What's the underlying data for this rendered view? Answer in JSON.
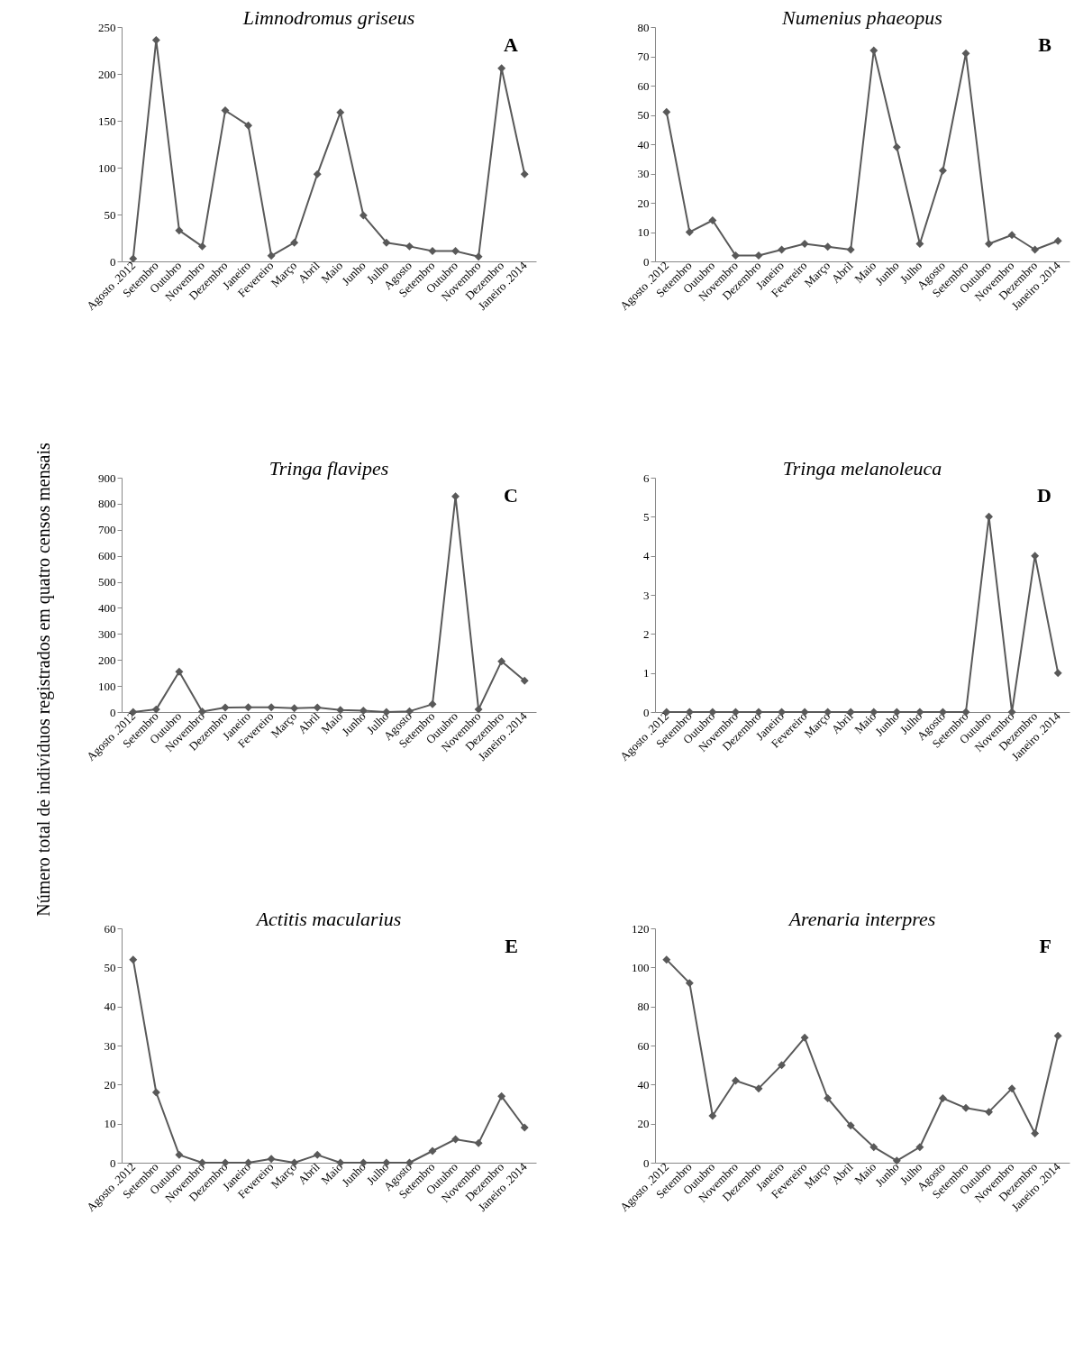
{
  "chart_data": [
    {
      "type": "line",
      "title": "Limnodromus griseus",
      "annotations": [
        "A"
      ],
      "categories": [
        "Agosto .2012",
        "Setembro",
        "Outubro",
        "Novembro",
        "Dezembro",
        "Janeiro",
        "Fevereiro",
        "Março",
        "Abril",
        "Maio",
        "Junho",
        "Julho",
        "Agosto",
        "Setembro",
        "Outubro",
        "Novembro",
        "Dezembro",
        "Janeiro .2014"
      ],
      "series": [
        {
          "color": "#595959",
          "values": [
            3,
            236,
            33,
            16,
            161,
            145,
            6,
            20,
            93,
            159,
            49,
            20,
            16,
            11,
            11,
            5,
            206,
            93
          ]
        }
      ],
      "ylim": [
        0,
        250
      ],
      "yticks": [
        0,
        50,
        100,
        150,
        200,
        250
      ],
      "grid": false,
      "marker": "diamond",
      "line_style": "solid"
    },
    {
      "type": "line",
      "title": "Numenius phaeopus",
      "annotations": [
        "B"
      ],
      "categories": [
        "Agosto .2012",
        "Setembro",
        "Outubro",
        "Novembro",
        "Dezembro",
        "Janeiro",
        "Fevereiro",
        "Março",
        "Abril",
        "Maio",
        "Junho",
        "Julho",
        "Agosto",
        "Setembro",
        "Outubro",
        "Novembro",
        "Dezembro",
        "Janeiro .2014"
      ],
      "series": [
        {
          "color": "#595959",
          "values": [
            51,
            10,
            14,
            2,
            2,
            4,
            6,
            5,
            4,
            72,
            39,
            6,
            31,
            71,
            6,
            9,
            4,
            7
          ]
        }
      ],
      "ylim": [
        0,
        80
      ],
      "yticks": [
        0,
        10,
        20,
        30,
        40,
        50,
        60,
        70,
        80
      ],
      "grid": false,
      "marker": "diamond",
      "line_style": "solid"
    },
    {
      "type": "line",
      "title": "Tringa flavipes",
      "annotations": [
        "C"
      ],
      "ylabel": "Número total de indivíduos registrados em quatro censos mensais",
      "categories": [
        "Agosto .2012",
        "Setembro",
        "Outubro",
        "Novembro",
        "Dezembro",
        "Janeiro",
        "Fevereiro",
        "Março",
        "Abril",
        "Maio",
        "Junho",
        "Julho",
        "Agosto",
        "Setembro",
        "Outubro",
        "Novembro",
        "Dezembro",
        "Janeiro .2014"
      ],
      "series": [
        {
          "color": "#595959",
          "values": [
            0,
            10,
            155,
            2,
            17,
            18,
            18,
            15,
            17,
            8,
            5,
            0,
            3,
            30,
            828,
            10,
            195,
            120
          ]
        }
      ],
      "ylim": [
        0,
        900
      ],
      "yticks": [
        0,
        100,
        200,
        300,
        400,
        500,
        600,
        700,
        800,
        900
      ],
      "grid": false,
      "marker": "diamond",
      "line_style": "solid"
    },
    {
      "type": "line",
      "title": "Tringa melanoleuca",
      "annotations": [
        "D"
      ],
      "categories": [
        "Agosto .2012",
        "Setembro",
        "Outubro",
        "Novembro",
        "Dezembro",
        "Janeiro",
        "Fevereiro",
        "Março",
        "Abril",
        "Maio",
        "Junho",
        "Julho",
        "Agosto",
        "Setembro",
        "Outubro",
        "Novembro",
        "Dezembro",
        "Janeiro .2014"
      ],
      "series": [
        {
          "color": "#595959",
          "values": [
            0,
            0,
            0,
            0,
            0,
            0,
            0,
            0,
            0,
            0,
            0,
            0,
            0,
            0,
            5,
            0,
            4,
            1
          ]
        }
      ],
      "ylim": [
        0,
        6
      ],
      "yticks": [
        0,
        1,
        2,
        3,
        4,
        5,
        6
      ],
      "grid": false,
      "marker": "diamond",
      "line_style": "solid"
    },
    {
      "type": "line",
      "title": "Actitis macularius",
      "annotations": [
        "E"
      ],
      "categories": [
        "Agosto .2012",
        "Setembro",
        "Outubro",
        "Novembro",
        "Dezembro",
        "Janeiro",
        "Fevereiro",
        "Março",
        "Abril",
        "Maio",
        "Junho",
        "Julho",
        "Agosto",
        "Setembro",
        "Outubro",
        "Novembro",
        "Dezembro",
        "Janeiro .2014"
      ],
      "series": [
        {
          "color": "#595959",
          "values": [
            52,
            18,
            2,
            0,
            0,
            0,
            1,
            0,
            2,
            0,
            0,
            0,
            0,
            3,
            6,
            5,
            17,
            9
          ]
        }
      ],
      "ylim": [
        0,
        60
      ],
      "yticks": [
        0,
        10,
        20,
        30,
        40,
        50,
        60
      ],
      "grid": false,
      "marker": "diamond",
      "line_style": "solid"
    },
    {
      "type": "line",
      "title": "Arenaria interpres",
      "annotations": [
        "F"
      ],
      "categories": [
        "Agosto .2012",
        "Setembro",
        "Outubro",
        "Novembro",
        "Dezembro",
        "Janeiro",
        "Fevereiro",
        "Março",
        "Abril",
        "Maio",
        "Junho",
        "Julho",
        "Agosto",
        "Setembro",
        "Outubro",
        "Novembro",
        "Dezembro",
        "Janeiro .2014"
      ],
      "series": [
        {
          "color": "#595959",
          "values": [
            104,
            92,
            24,
            42,
            38,
            50,
            64,
            33,
            19,
            8,
            1,
            8,
            33,
            28,
            26,
            38,
            15,
            65
          ]
        }
      ],
      "ylim": [
        0,
        120
      ],
      "yticks": [
        0,
        20,
        40,
        60,
        80,
        100,
        120
      ],
      "grid": false,
      "marker": "diamond",
      "line_style": "solid"
    }
  ]
}
